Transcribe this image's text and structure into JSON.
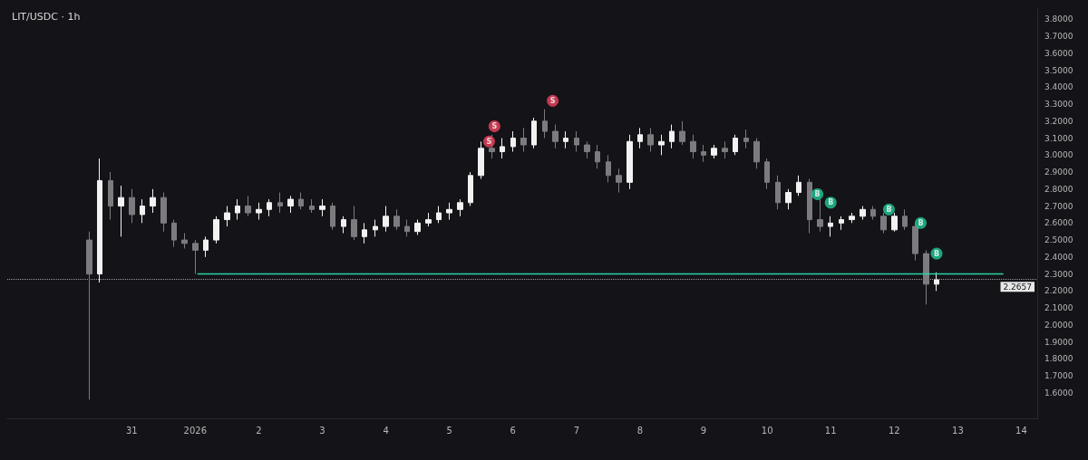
{
  "chart_data": {
    "type": "candlestick",
    "title": "LIT/USDC · 1h",
    "x": [
      "2025-12-30T08:00",
      "2025-12-30T12:00",
      "2025-12-30T16:00",
      "2025-12-30T20:00",
      "2025-12-31T00:00",
      "2025-12-31T04:00",
      "2025-12-31T08:00",
      "2025-12-31T12:00",
      "2025-12-31T16:00",
      "2025-12-31T20:00",
      "2026-01-01T00:00",
      "2026-01-01T04:00",
      "2026-01-01T08:00",
      "2026-01-01T12:00",
      "2026-01-01T16:00",
      "2026-01-01T20:00",
      "2026-01-02T00:00",
      "2026-01-02T04:00",
      "2026-01-02T08:00",
      "2026-01-02T12:00",
      "2026-01-02T16:00",
      "2026-01-02T20:00",
      "2026-01-03T00:00",
      "2026-01-03T04:00",
      "2026-01-03T08:00",
      "2026-01-03T12:00",
      "2026-01-03T16:00",
      "2026-01-03T20:00",
      "2026-01-04T00:00",
      "2026-01-04T04:00",
      "2026-01-04T08:00",
      "2026-01-04T12:00",
      "2026-01-04T16:00",
      "2026-01-04T20:00",
      "2026-01-05T00:00",
      "2026-01-05T04:00",
      "2026-01-05T08:00",
      "2026-01-05T12:00",
      "2026-01-05T16:00",
      "2026-01-05T20:00",
      "2026-01-06T00:00",
      "2026-01-06T04:00",
      "2026-01-06T08:00",
      "2026-01-06T12:00",
      "2026-01-06T16:00",
      "2026-01-06T20:00",
      "2026-01-07T00:00",
      "2026-01-07T04:00",
      "2026-01-07T08:00",
      "2026-01-07T12:00",
      "2026-01-07T16:00",
      "2026-01-07T20:00",
      "2026-01-08T00:00",
      "2026-01-08T04:00",
      "2026-01-08T08:00",
      "2026-01-08T12:00",
      "2026-01-08T16:00",
      "2026-01-08T20:00",
      "2026-01-09T00:00",
      "2026-01-09T04:00",
      "2026-01-09T08:00",
      "2026-01-09T12:00",
      "2026-01-09T16:00",
      "2026-01-09T20:00",
      "2026-01-10T00:00",
      "2026-01-10T04:00",
      "2026-01-10T08:00",
      "2026-01-10T12:00",
      "2026-01-10T16:00",
      "2026-01-10T20:00",
      "2026-01-11T00:00",
      "2026-01-11T04:00",
      "2026-01-11T08:00",
      "2026-01-11T12:00",
      "2026-01-11T16:00",
      "2026-01-11T20:00",
      "2026-01-12T00:00",
      "2026-01-12T04:00",
      "2026-01-12T08:00",
      "2026-01-12T12:00",
      "2026-01-12T16:00"
    ],
    "ohlc": [
      [
        2.5,
        2.55,
        1.56,
        2.3
      ],
      [
        2.3,
        2.98,
        2.25,
        2.85
      ],
      [
        2.85,
        2.9,
        2.62,
        2.7
      ],
      [
        2.7,
        2.82,
        2.52,
        2.75
      ],
      [
        2.75,
        2.8,
        2.6,
        2.65
      ],
      [
        2.65,
        2.74,
        2.6,
        2.7
      ],
      [
        2.7,
        2.8,
        2.66,
        2.75
      ],
      [
        2.75,
        2.78,
        2.55,
        2.6
      ],
      [
        2.6,
        2.62,
        2.46,
        2.5
      ],
      [
        2.5,
        2.54,
        2.45,
        2.48
      ],
      [
        2.48,
        2.5,
        2.3,
        2.44
      ],
      [
        2.44,
        2.52,
        2.4,
        2.5
      ],
      [
        2.5,
        2.64,
        2.48,
        2.62
      ],
      [
        2.62,
        2.7,
        2.58,
        2.66
      ],
      [
        2.66,
        2.74,
        2.62,
        2.7
      ],
      [
        2.7,
        2.76,
        2.64,
        2.66
      ],
      [
        2.66,
        2.72,
        2.62,
        2.68
      ],
      [
        2.68,
        2.74,
        2.64,
        2.72
      ],
      [
        2.72,
        2.78,
        2.66,
        2.7
      ],
      [
        2.7,
        2.76,
        2.66,
        2.74
      ],
      [
        2.74,
        2.78,
        2.68,
        2.7
      ],
      [
        2.7,
        2.74,
        2.66,
        2.68
      ],
      [
        2.68,
        2.74,
        2.64,
        2.7
      ],
      [
        2.7,
        2.72,
        2.56,
        2.58
      ],
      [
        2.58,
        2.64,
        2.54,
        2.62
      ],
      [
        2.62,
        2.7,
        2.5,
        2.52
      ],
      [
        2.52,
        2.6,
        2.48,
        2.56
      ],
      [
        2.56,
        2.62,
        2.52,
        2.58
      ],
      [
        2.58,
        2.7,
        2.55,
        2.64
      ],
      [
        2.64,
        2.68,
        2.56,
        2.58
      ],
      [
        2.58,
        2.62,
        2.52,
        2.55
      ],
      [
        2.55,
        2.62,
        2.53,
        2.6
      ],
      [
        2.6,
        2.66,
        2.58,
        2.62
      ],
      [
        2.62,
        2.7,
        2.6,
        2.66
      ],
      [
        2.66,
        2.72,
        2.62,
        2.68
      ],
      [
        2.68,
        2.74,
        2.64,
        2.72
      ],
      [
        2.72,
        2.9,
        2.7,
        2.88
      ],
      [
        2.88,
        3.08,
        2.86,
        3.04
      ],
      [
        3.04,
        3.12,
        2.98,
        3.02
      ],
      [
        3.02,
        3.1,
        2.98,
        3.05
      ],
      [
        3.05,
        3.14,
        3.02,
        3.1
      ],
      [
        3.1,
        3.16,
        3.02,
        3.06
      ],
      [
        3.06,
        3.22,
        3.04,
        3.2
      ],
      [
        3.2,
        3.27,
        3.1,
        3.14
      ],
      [
        3.14,
        3.18,
        3.04,
        3.08
      ],
      [
        3.08,
        3.14,
        3.04,
        3.1
      ],
      [
        3.1,
        3.14,
        3.02,
        3.06
      ],
      [
        3.06,
        3.08,
        2.98,
        3.02
      ],
      [
        3.02,
        3.06,
        2.92,
        2.96
      ],
      [
        2.96,
        3.0,
        2.84,
        2.88
      ],
      [
        2.88,
        2.92,
        2.78,
        2.84
      ],
      [
        2.84,
        3.12,
        2.8,
        3.08
      ],
      [
        3.08,
        3.16,
        3.04,
        3.12
      ],
      [
        3.12,
        3.16,
        3.02,
        3.06
      ],
      [
        3.06,
        3.12,
        3.0,
        3.08
      ],
      [
        3.08,
        3.18,
        3.04,
        3.14
      ],
      [
        3.14,
        3.2,
        3.06,
        3.08
      ],
      [
        3.08,
        3.12,
        2.98,
        3.02
      ],
      [
        3.02,
        3.06,
        2.96,
        3.0
      ],
      [
        3.0,
        3.06,
        2.98,
        3.04
      ],
      [
        3.04,
        3.08,
        2.98,
        3.02
      ],
      [
        3.02,
        3.12,
        3.0,
        3.1
      ],
      [
        3.1,
        3.15,
        3.04,
        3.08
      ],
      [
        3.08,
        3.1,
        2.92,
        2.96
      ],
      [
        2.96,
        2.98,
        2.8,
        2.84
      ],
      [
        2.84,
        2.88,
        2.68,
        2.72
      ],
      [
        2.72,
        2.8,
        2.68,
        2.78
      ],
      [
        2.78,
        2.88,
        2.76,
        2.84
      ],
      [
        2.84,
        2.86,
        2.54,
        2.62
      ],
      [
        2.62,
        2.74,
        2.55,
        2.58
      ],
      [
        2.58,
        2.64,
        2.52,
        2.6
      ],
      [
        2.6,
        2.64,
        2.56,
        2.62
      ],
      [
        2.62,
        2.66,
        2.6,
        2.64
      ],
      [
        2.64,
        2.7,
        2.62,
        2.68
      ],
      [
        2.68,
        2.7,
        2.62,
        2.64
      ],
      [
        2.64,
        2.66,
        2.54,
        2.56
      ],
      [
        2.56,
        2.66,
        2.55,
        2.64
      ],
      [
        2.64,
        2.68,
        2.56,
        2.58
      ],
      [
        2.58,
        2.6,
        2.38,
        2.42
      ],
      [
        2.42,
        2.44,
        2.12,
        2.24
      ],
      [
        2.24,
        2.31,
        2.2,
        2.2657
      ]
    ],
    "colors": [
      "#7c7c80",
      "#f2f2f2",
      "#7c7c80",
      "#f2f2f2",
      "#7c7c80",
      "#f2f2f2",
      "#f2f2f2",
      "#7c7c80",
      "#7c7c80",
      "#7c7c80",
      "#7c7c80",
      "#f2f2f2",
      "#f2f2f2",
      "#f2f2f2",
      "#f2f2f2",
      "#7c7c80",
      "#f2f2f2",
      "#f2f2f2",
      "#7c7c80",
      "#f2f2f2",
      "#7c7c80",
      "#7c7c80",
      "#f2f2f2",
      "#7c7c80",
      "#f2f2f2",
      "#7c7c80",
      "#f2f2f2",
      "#f2f2f2",
      "#f2f2f2",
      "#7c7c80",
      "#7c7c80",
      "#f2f2f2",
      "#f2f2f2",
      "#f2f2f2",
      "#f2f2f2",
      "#f2f2f2",
      "#f2f2f2",
      "#f2f2f2",
      "#7c7c80",
      "#f2f2f2",
      "#f2f2f2",
      "#7c7c80",
      "#f2f2f2",
      "#7c7c80",
      "#7c7c80",
      "#f2f2f2",
      "#7c7c80",
      "#7c7c80",
      "#7c7c80",
      "#7c7c80",
      "#7c7c80",
      "#f2f2f2",
      "#f2f2f2",
      "#7c7c80",
      "#f2f2f2",
      "#f2f2f2",
      "#7c7c80",
      "#7c7c80",
      "#7c7c80",
      "#f2f2f2",
      "#7c7c80",
      "#f2f2f2",
      "#7c7c80",
      "#7c7c80",
      "#7c7c80",
      "#7c7c80",
      "#f2f2f2",
      "#f2f2f2",
      "#7c7c80",
      "#7c7c80",
      "#f2f2f2",
      "#f2f2f2",
      "#f2f2f2",
      "#f2f2f2",
      "#7c7c80",
      "#7c7c80",
      "#f2f2f2",
      "#7c7c80",
      "#7c7c80",
      "#7c7c80",
      "#f2f2f2"
    ],
    "xlim": [
      "2025-12-29T01:00",
      "2026-01-14T06:00"
    ],
    "xticks": [
      {
        "value": "2025-12-31",
        "label": "31"
      },
      {
        "value": "2026-01-01",
        "label": "2026"
      },
      {
        "value": "2026-01-02",
        "label": "2"
      },
      {
        "value": "2026-01-03",
        "label": "3"
      },
      {
        "value": "2026-01-04",
        "label": "4"
      },
      {
        "value": "2026-01-05",
        "label": "5"
      },
      {
        "value": "2026-01-06",
        "label": "6"
      },
      {
        "value": "2026-01-07",
        "label": "7"
      },
      {
        "value": "2026-01-08",
        "label": "8"
      },
      {
        "value": "2026-01-09",
        "label": "9"
      },
      {
        "value": "2026-01-10",
        "label": "10"
      },
      {
        "value": "2026-01-11",
        "label": "11"
      },
      {
        "value": "2026-01-12",
        "label": "12"
      },
      {
        "value": "2026-01-13",
        "label": "13"
      },
      {
        "value": "2026-01-14",
        "label": "14"
      }
    ],
    "ylim": [
      1.45,
      3.86
    ],
    "yticks": [
      {
        "value": 1.6,
        "label": "1.6000"
      },
      {
        "value": 1.7,
        "label": "1.7000"
      },
      {
        "value": 1.8,
        "label": "1.8000"
      },
      {
        "value": 1.9,
        "label": "1.9000"
      },
      {
        "value": 2.0,
        "label": "2.0000"
      },
      {
        "value": 2.1,
        "label": "2.1000"
      },
      {
        "value": 2.2,
        "label": "2.2000"
      },
      {
        "value": 2.3,
        "label": "2.3000"
      },
      {
        "value": 2.4,
        "label": "2.4000"
      },
      {
        "value": 2.5,
        "label": "2.5000"
      },
      {
        "value": 2.6,
        "label": "2.6000"
      },
      {
        "value": 2.7,
        "label": "2.7000"
      },
      {
        "value": 2.8,
        "label": "2.8000"
      },
      {
        "value": 2.9,
        "label": "2.9000"
      },
      {
        "value": 3.0,
        "label": "3.0000"
      },
      {
        "value": 3.1,
        "label": "3.1000"
      },
      {
        "value": 3.2,
        "label": "3.2000"
      },
      {
        "value": 3.3,
        "label": "3.3000"
      },
      {
        "value": 3.4,
        "label": "3.4000"
      },
      {
        "value": 3.5,
        "label": "3.5000"
      },
      {
        "value": 3.6,
        "label": "3.6000"
      },
      {
        "value": 3.7,
        "label": "3.7000"
      },
      {
        "value": 3.8,
        "label": "3.8000"
      }
    ],
    "grid": false,
    "ref_lines": [
      {
        "axis": "y",
        "value": 2.2657,
        "label": "2.2657",
        "color": "#9a9aa0",
        "line_style": "dotted"
      }
    ],
    "series": [
      {
        "type": "line",
        "x": [
          "2026-01-01T01:00",
          "2026-01-13T17:00"
        ],
        "values": [
          2.3,
          2.3
        ],
        "color": "#2ad4a4",
        "marker": "none"
      },
      {
        "type": "scatter",
        "x": [
          "2026-01-05T15:00",
          "2026-01-05T17:00",
          "2026-01-06T15:00"
        ],
        "values": [
          3.08,
          3.17,
          3.32
        ],
        "color": "#f0435f",
        "marker": "circle",
        "value_labels": [
          "S",
          "S",
          "S"
        ]
      },
      {
        "type": "scatter",
        "x": [
          "2026-01-10T19:00",
          "2026-01-11T00:00",
          "2026-01-11T22:00",
          "2026-01-12T10:00",
          "2026-01-12T16:00"
        ],
        "values": [
          2.77,
          2.72,
          2.68,
          2.6,
          2.42
        ],
        "color": "#22c99a",
        "marker": "circle",
        "value_labels": [
          "B",
          "B",
          "B",
          "B",
          "B"
        ]
      }
    ]
  }
}
